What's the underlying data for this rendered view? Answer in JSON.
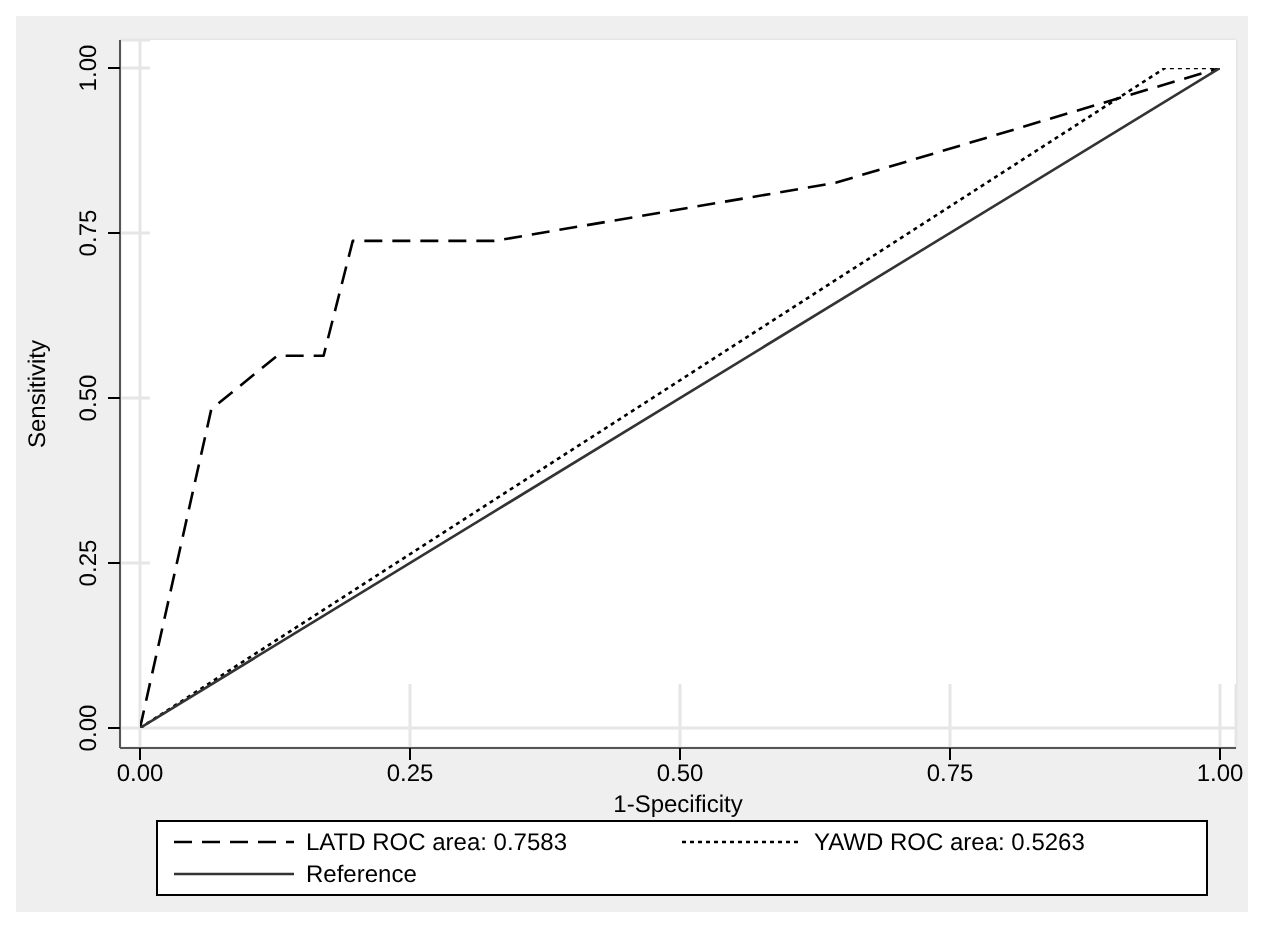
{
  "chart_data": {
    "type": "line",
    "xlabel": "1-Specificity",
    "ylabel": "Sensitivity",
    "xlim": [
      0,
      1
    ],
    "ylim": [
      0,
      1
    ],
    "xticks": [
      {
        "value": 0,
        "label": "0.00"
      },
      {
        "value": 0.25,
        "label": "0.25"
      },
      {
        "value": 0.5,
        "label": "0.50"
      },
      {
        "value": 0.75,
        "label": "0.75"
      },
      {
        "value": 1,
        "label": "1.00"
      }
    ],
    "yticks": [
      {
        "value": 0,
        "label": "0.00"
      },
      {
        "value": 0.25,
        "label": "0.25"
      },
      {
        "value": 0.5,
        "label": "0.50"
      },
      {
        "value": 0.75,
        "label": "0.75"
      },
      {
        "value": 1,
        "label": "1.00"
      }
    ],
    "grid": true,
    "legend": "bottom",
    "marker": "none",
    "series": [
      {
        "name": "LATD ROC area: 0.7583",
        "color": "#000000",
        "line_style": "dashed",
        "x": [
          0,
          0.066,
          0.127,
          0.17,
          0.197,
          0.328,
          0.644,
          1
        ],
        "values": [
          0,
          0.483,
          0.564,
          0.564,
          0.738,
          0.738,
          0.826,
          1
        ]
      },
      {
        "name": "YAWD ROC area: 0.5263",
        "color": "#000000",
        "line_style": "dotted",
        "x": [
          0,
          0.949,
          1
        ],
        "values": [
          0,
          1,
          1
        ]
      },
      {
        "name": "Reference",
        "color": "#333333",
        "line_style": "solid",
        "x": [
          0,
          1
        ],
        "values": [
          0,
          1
        ]
      }
    ]
  }
}
